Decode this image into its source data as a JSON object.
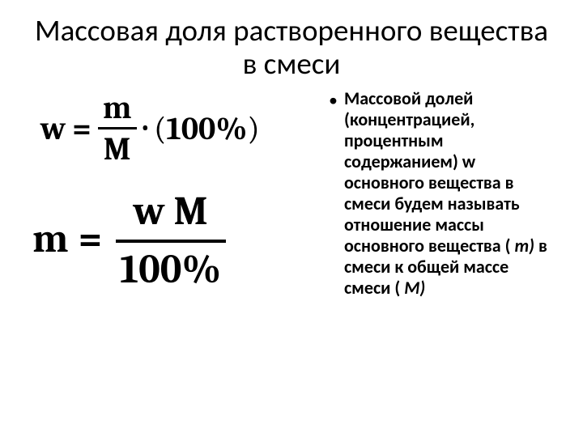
{
  "slide": {
    "title": "Массовая доля растворенного вещества в смеси",
    "background_color": "#ffffff",
    "text_color": "#000000",
    "title_fontsize": 37,
    "body_fontsize": 22,
    "formula_font": "Cambria",
    "body_font": "Calibri"
  },
  "formulas": {
    "f1": {
      "lhs": "w",
      "eq": "=",
      "frac_num": "m",
      "frac_den": "M",
      "dot": "·",
      "rhs_open": "(",
      "rhs_val": "100%",
      "rhs_close": ")",
      "fontsize": 40,
      "color": "#000000"
    },
    "f2": {
      "lhs": "m",
      "eq": "=",
      "frac_num": "w M",
      "frac_den": "100%",
      "fontsize": 50,
      "color": "#000000"
    }
  },
  "bullet": {
    "marker": "•",
    "text_parts": {
      "p1": "Массовой долей (концентрацией, процентным содержанием) w основного вещества в смеси будем называть отношение массы основного вещества ( ",
      "m": "m)",
      "p2": " в смеси к общей массе смеси ( ",
      "M": "M)"
    }
  }
}
